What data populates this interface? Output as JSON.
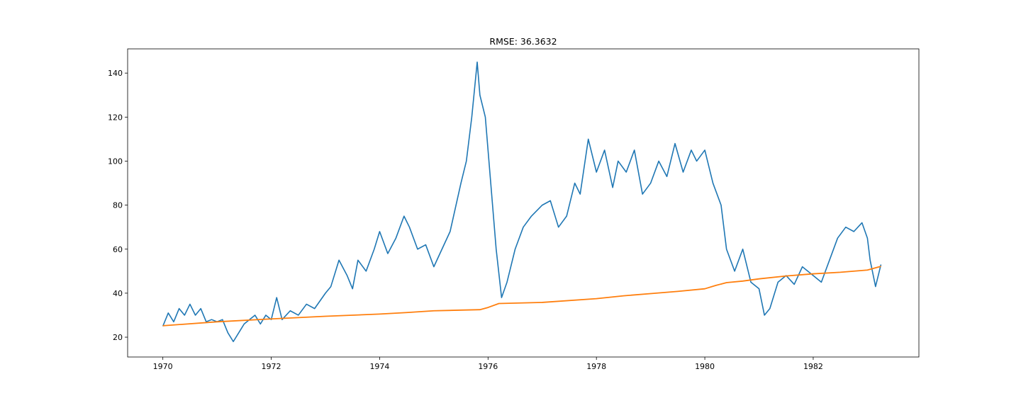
{
  "chart_data": {
    "type": "line",
    "title": "RMSE: 36.3632",
    "xlabel": "",
    "ylabel": "",
    "xlim": [
      1969.35,
      1983.95
    ],
    "ylim": [
      11,
      151
    ],
    "xticks": [
      1970,
      1972,
      1974,
      1976,
      1978,
      1980,
      1982
    ],
    "yticks": [
      20,
      40,
      60,
      80,
      100,
      120,
      140
    ],
    "grid": false,
    "legend": "none",
    "series": [
      {
        "color": "#1f77b4",
        "x": [
          1970.0,
          1970.1,
          1970.2,
          1970.3,
          1970.4,
          1970.5,
          1970.6,
          1970.7,
          1970.8,
          1970.9,
          1971.0,
          1971.1,
          1971.2,
          1971.3,
          1971.4,
          1971.5,
          1971.6,
          1971.7,
          1971.8,
          1971.9,
          1972.0,
          1972.1,
          1972.2,
          1972.35,
          1972.5,
          1972.65,
          1972.8,
          1973.0,
          1973.1,
          1973.25,
          1973.4,
          1973.5,
          1973.6,
          1973.75,
          1973.9,
          1974.0,
          1974.15,
          1974.3,
          1974.45,
          1974.55,
          1974.7,
          1974.85,
          1975.0,
          1975.15,
          1975.3,
          1975.5,
          1975.6,
          1975.7,
          1975.8,
          1975.85,
          1975.95,
          1976.05,
          1976.15,
          1976.25,
          1976.35,
          1976.5,
          1976.65,
          1976.8,
          1977.0,
          1977.15,
          1977.3,
          1977.45,
          1977.6,
          1977.7,
          1977.85,
          1978.0,
          1978.15,
          1978.3,
          1978.4,
          1978.55,
          1978.7,
          1978.85,
          1979.0,
          1979.15,
          1979.3,
          1979.45,
          1979.6,
          1979.75,
          1979.85,
          1980.0,
          1980.15,
          1980.3,
          1980.4,
          1980.55,
          1980.7,
          1980.85,
          1981.0,
          1981.1,
          1981.2,
          1981.35,
          1981.5,
          1981.65,
          1981.8,
          1982.0,
          1982.15,
          1982.3,
          1982.45,
          1982.6,
          1982.75,
          1982.9,
          1983.0,
          1983.05,
          1983.15,
          1983.25
        ],
        "values": [
          25,
          31,
          27,
          33,
          30,
          35,
          30,
          33,
          27,
          28,
          27,
          28,
          22,
          18,
          22,
          26,
          28,
          30,
          26,
          30,
          28,
          38,
          28,
          32,
          30,
          35,
          33,
          40,
          43,
          55,
          48,
          42,
          55,
          50,
          60,
          68,
          58,
          65,
          75,
          70,
          60,
          62,
          52,
          60,
          68,
          90,
          100,
          120,
          145,
          130,
          120,
          90,
          60,
          38,
          45,
          60,
          70,
          75,
          80,
          82,
          70,
          75,
          90,
          85,
          110,
          95,
          105,
          88,
          100,
          95,
          105,
          85,
          90,
          100,
          93,
          108,
          95,
          105,
          100,
          105,
          90,
          80,
          60,
          50,
          60,
          45,
          42,
          30,
          33,
          45,
          48,
          44,
          52,
          48,
          45,
          55,
          65,
          70,
          68,
          72,
          65,
          55,
          43,
          53
        ]
      },
      {
        "color": "#ff7f0e",
        "x": [
          1970.0,
          1971.0,
          1972.0,
          1973.0,
          1974.0,
          1974.5,
          1975.0,
          1975.5,
          1975.85,
          1976.0,
          1976.2,
          1977.0,
          1978.0,
          1978.5,
          1979.0,
          1979.5,
          1980.0,
          1980.2,
          1980.4,
          1980.7,
          1981.0,
          1981.5,
          1982.0,
          1982.5,
          1983.0,
          1983.25
        ],
        "values": [
          25.2,
          27.0,
          28.3,
          29.5,
          30.5,
          31.2,
          32.0,
          32.3,
          32.5,
          33.5,
          35.3,
          35.8,
          37.5,
          38.8,
          39.8,
          40.8,
          42.0,
          43.5,
          44.8,
          45.5,
          46.5,
          47.8,
          48.8,
          49.5,
          50.5,
          52.2
        ]
      }
    ]
  }
}
